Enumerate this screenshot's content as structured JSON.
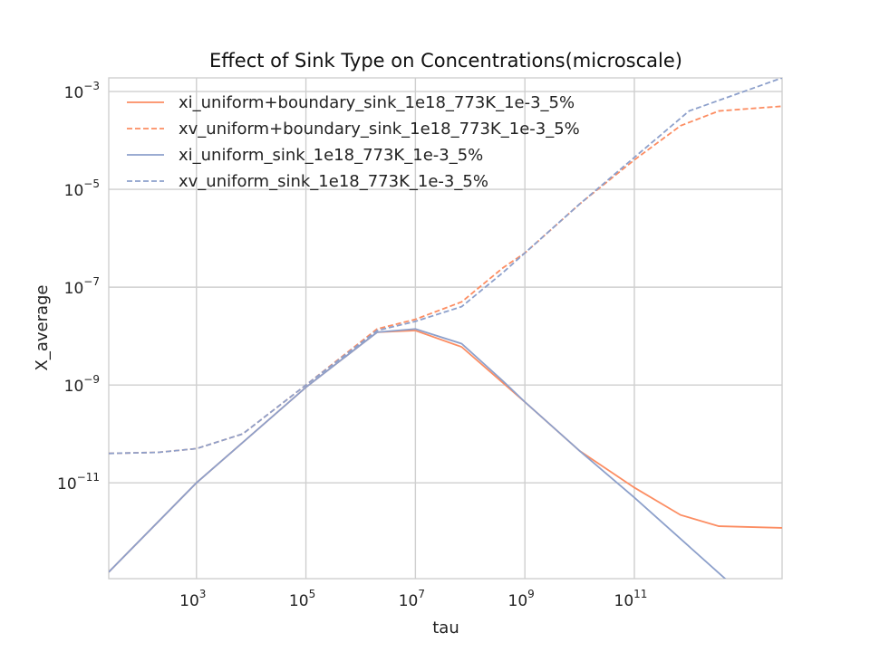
{
  "chart_data": {
    "type": "line",
    "title": "Effect of Sink Type on Concentrations(microscale)",
    "xlabel": "tau",
    "ylabel": "X_average",
    "xscale": "log",
    "yscale": "log",
    "xlim": [
      25,
      50000000000000.0
    ],
    "ylim": [
      1.1e-13,
      0.0019
    ],
    "grid": true,
    "legend_position": "upper-left",
    "xticks": [
      {
        "value": 1000.0,
        "base": "10",
        "exp": "3"
      },
      {
        "value": 100000.0,
        "base": "10",
        "exp": "5"
      },
      {
        "value": 10000000.0,
        "base": "10",
        "exp": "7"
      },
      {
        "value": 1000000000.0,
        "base": "10",
        "exp": "9"
      },
      {
        "value": 100000000000.0,
        "base": "10",
        "exp": "11"
      }
    ],
    "yticks": [
      {
        "value": 1e-11,
        "base": "10",
        "exp": "−11"
      },
      {
        "value": 1e-09,
        "base": "10",
        "exp": "−9"
      },
      {
        "value": 1e-07,
        "base": "10",
        "exp": "−7"
      },
      {
        "value": 1e-05,
        "base": "10",
        "exp": "−5"
      },
      {
        "value": 0.001,
        "base": "10",
        "exp": "−3"
      }
    ],
    "series": [
      {
        "name": "xi_uniform+boundary_sink_1e18_773K_1e-3_5%",
        "color": "#fc8d62",
        "dash": "solid",
        "x": [
          25,
          1000.0,
          100000.0,
          2000000.0,
          10000000.0,
          70000000.0,
          400000000.0,
          1000000000.0,
          10000000000.0,
          100000000000.0,
          700000000000.0,
          3500000000000.0,
          50000000000000.0
        ],
        "y": [
          1.5e-13,
          1e-11,
          9e-10,
          1.2e-08,
          1.3e-08,
          6e-09,
          1.1e-09,
          4.5e-10,
          4.5e-11,
          8e-12,
          2.2e-12,
          1.3e-12,
          1.2e-12
        ]
      },
      {
        "name": "xv_uniform+boundary_sink_1e18_773K_1e-3_5%",
        "color": "#fc8d62",
        "dash": "dashed",
        "x": [
          25,
          200,
          1000.0,
          7000.0,
          100000.0,
          2000000.0,
          10000000.0,
          70000000.0,
          400000000.0,
          1000000000.0,
          10000000000.0,
          100000000000.0,
          700000000000.0,
          3500000000000.0,
          50000000000000.0
        ],
        "y": [
          4e-11,
          4.2e-11,
          5e-11,
          1e-10,
          1e-09,
          1.4e-08,
          2.2e-08,
          5e-08,
          2.5e-07,
          5e-07,
          5e-06,
          4e-05,
          0.0002,
          0.0004,
          0.0005
        ]
      },
      {
        "name": "xi_uniform_sink_1e18_773K_1e-3_5%",
        "color": "#8da0cb",
        "dash": "solid",
        "x": [
          25,
          1000.0,
          100000.0,
          2000000.0,
          10000000.0,
          70000000.0,
          400000000.0,
          1000000000.0,
          10000000000.0,
          100000000000.0,
          1000000000000.0,
          50000000000000.0
        ],
        "y": [
          1.5e-13,
          1e-11,
          9e-10,
          1.2e-08,
          1.4e-08,
          7e-09,
          1.2e-09,
          4.5e-10,
          4.5e-11,
          5e-12,
          5e-13,
          1e-14
        ]
      },
      {
        "name": "xv_uniform_sink_1e18_773K_1e-3_5%",
        "color": "#8da0cb",
        "dash": "dashed",
        "x": [
          25,
          200,
          1000.0,
          7000.0,
          100000.0,
          2000000.0,
          10000000.0,
          70000000.0,
          400000000.0,
          1000000000.0,
          10000000000.0,
          100000000000.0,
          1000000000000.0,
          50000000000000.0
        ],
        "y": [
          4e-11,
          4.2e-11,
          5e-11,
          1e-10,
          1e-09,
          1.3e-08,
          2e-08,
          4e-08,
          2e-07,
          5e-07,
          5e-06,
          4.5e-05,
          0.0004,
          0.0019
        ]
      }
    ]
  }
}
